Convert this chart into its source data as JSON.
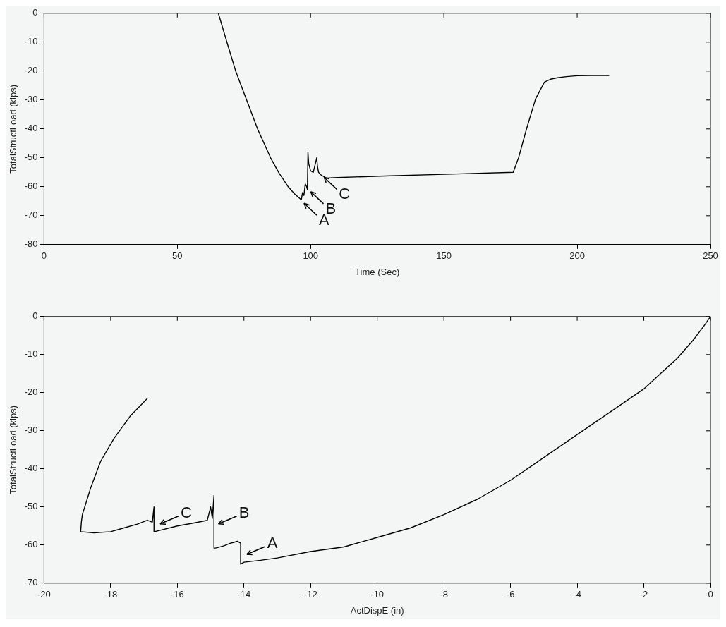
{
  "chart_data": [
    {
      "type": "line",
      "xlabel": "Time (Sec)",
      "ylabel": "TotalStructLoad (kips)",
      "xlim": [
        0,
        250
      ],
      "xticks": [
        0,
        50,
        100,
        150,
        200,
        250
      ],
      "ylim": [
        -80,
        0
      ],
      "yticks": [
        -80,
        -70,
        -60,
        -50,
        -40,
        -30,
        -20,
        -10,
        0
      ],
      "grid": false,
      "legend": false,
      "marker": "none",
      "series": [
        {
          "color": "#000000",
          "x": [
            65.4,
            68.6,
            71.9,
            76,
            80.1,
            85,
            88,
            91.6,
            94,
            96.5,
            97,
            97.5,
            98,
            98.5,
            98.8,
            99,
            99.3,
            100,
            101,
            102.3,
            102.6,
            103,
            104,
            106,
            110,
            130,
            150,
            176,
            178,
            181,
            184.4,
            187.7,
            190,
            192.6,
            196,
            200,
            205,
            212
          ],
          "values": [
            0,
            -10,
            -20,
            -30,
            -40,
            -50,
            -55,
            -60,
            -62.5,
            -64.5,
            -62,
            -63,
            -59,
            -60,
            -61,
            -48,
            -52,
            -54.5,
            -55,
            -50,
            -53,
            -55,
            -56,
            -57,
            -56.8,
            -56.2,
            -55.7,
            -55,
            -50,
            -40,
            -29.6,
            -23.8,
            -22.8,
            -22.3,
            -21.9,
            -21.6,
            -21.5,
            -21.5
          ]
        }
      ],
      "annotations": [
        {
          "text": "A",
          "x": 96.5,
          "y": -65
        },
        {
          "text": "B",
          "x": 99,
          "y": -61
        },
        {
          "text": "C",
          "x": 104,
          "y": -56
        }
      ]
    },
    {
      "type": "line",
      "xlabel": "ActDispE (in)",
      "ylabel": "TotalStructLoad (kips)",
      "xlim": [
        -20,
        0
      ],
      "xticks": [
        -20,
        -18,
        -16,
        -14,
        -12,
        -10,
        -8,
        -6,
        -4,
        -2,
        0
      ],
      "ylim": [
        -70,
        0
      ],
      "yticks": [
        -70,
        -60,
        -50,
        -40,
        -30,
        -20,
        -10,
        0
      ],
      "grid": false,
      "legend": false,
      "marker": "none",
      "series": [
        {
          "color": "#000000",
          "x": [
            0,
            -0.2,
            -0.5,
            -1,
            -1.5,
            -2,
            -3,
            -4,
            -5,
            -6,
            -7,
            -8,
            -9,
            -10,
            -11,
            -12,
            -13,
            -13.5,
            -14,
            -14.1,
            -14.1,
            -14.2,
            -14.3,
            -14.4,
            -14.6,
            -14.85,
            -14.9,
            -14.9,
            -14.95,
            -15.0,
            -15.1,
            -15.5,
            -16,
            -16.6,
            -16.7,
            -16.7,
            -16.75,
            -16.9,
            -17.2,
            -17.6,
            -18,
            -18.5,
            -18.9,
            -18.88,
            -18.85,
            -18.6,
            -18.3,
            -17.9,
            -17.4,
            -16.9
          ],
          "values": [
            0,
            -2.5,
            -6,
            -11,
            -15,
            -19,
            -25,
            -31,
            -37,
            -43,
            -48,
            -52,
            -55.5,
            -58,
            -60.5,
            -61.7,
            -63.4,
            -64,
            -64.5,
            -65,
            -59.5,
            -59,
            -59.3,
            -59.5,
            -60.2,
            -60.8,
            -60.8,
            -47,
            -53,
            -50,
            -53.5,
            -54.2,
            -55,
            -56.3,
            -56.5,
            -50,
            -54,
            -53.5,
            -54.5,
            -55.5,
            -56.5,
            -56.8,
            -56.5,
            -54,
            -52,
            -45,
            -38,
            -32,
            -26,
            -21.5
          ]
        }
      ],
      "annotations": [
        {
          "text": "C",
          "x": -16.6,
          "y": -55
        },
        {
          "text": "B",
          "x": -14.85,
          "y": -55
        },
        {
          "text": "A",
          "x": -14,
          "y": -63
        }
      ]
    }
  ]
}
